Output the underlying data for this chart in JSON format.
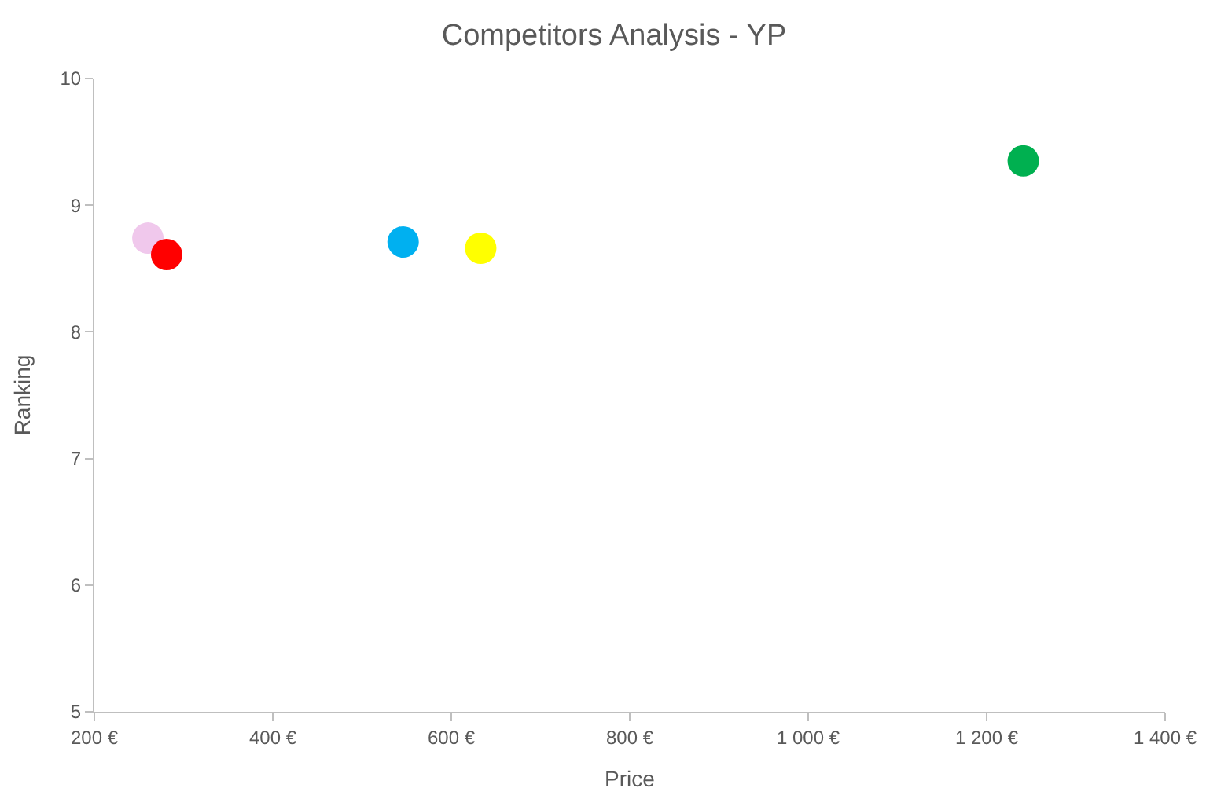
{
  "chart_data": {
    "type": "scatter",
    "title": "Competitors Analysis - YP",
    "xlabel": "Price",
    "ylabel": "Ranking",
    "x": [
      260,
      281,
      546,
      633,
      1241
    ],
    "values": [
      8.74,
      8.61,
      8.71,
      8.66,
      9.35
    ],
    "colors": [
      "#f0c8ec",
      "#ff0000",
      "#00b0f0",
      "#ffff00",
      "#00b050"
    ],
    "xlim": [
      200,
      1400
    ],
    "xticks": [
      {
        "value": 200,
        "label": "200 €"
      },
      {
        "value": 400,
        "label": "400 €"
      },
      {
        "value": 600,
        "label": "600 €"
      },
      {
        "value": 800,
        "label": "800 €"
      },
      {
        "value": 1000,
        "label": "1 000 €"
      },
      {
        "value": 1200,
        "label": "1 200 €"
      },
      {
        "value": 1400,
        "label": "1 400 €"
      }
    ],
    "ylim": [
      5,
      10
    ],
    "yticks": [
      5,
      6,
      7,
      8,
      9,
      10
    ],
    "marker": "circle"
  }
}
